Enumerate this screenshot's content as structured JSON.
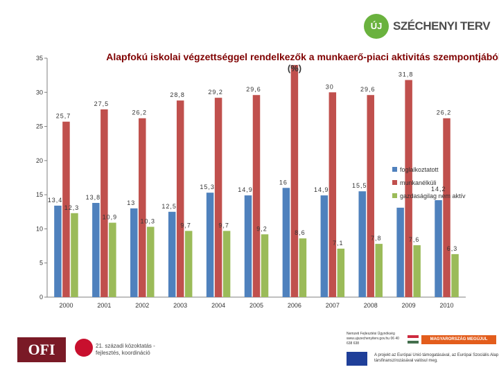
{
  "branding": {
    "icon_text": "ÚJ",
    "name": "SZÉCHENYI TERV",
    "ofi_logo": "OFI",
    "partner_logo": "21. századi közoktatás - fejlesztés, koordináció",
    "contact_text": "Nemzeti Fejlesztési Ügynökség www.ujszechenyiterv.gov.hu 06 40 638 638",
    "mo_badge": "MAGYARORSZÁG MEGÚJUL",
    "eu_text": "A projekt az Európai Unió támogatásával, az Európai Szociális Alap társfinanszírozásával valósul meg."
  },
  "colors": {
    "foglalkoztatott": "#4f81bd",
    "munkanelkuli": "#c0504d",
    "inaktiv": "#9bbb59",
    "axis": "#7f7f7f",
    "brand_green": "#6ab23e"
  },
  "chart_data": {
    "type": "bar",
    "title": "Alapfokú iskolai végzettséggel rendelkezők a munkaerő-piaci aktivitás szempontjából",
    "subtitle": "(%)",
    "categories": [
      "2000",
      "2001",
      "2002",
      "2003",
      "2004",
      "2005",
      "2006",
      "2007",
      "2008",
      "2009",
      "2010"
    ],
    "series": [
      {
        "name": "foglalkoztatott",
        "values": [
          13.4,
          13.8,
          13,
          12.5,
          15.3,
          14.9,
          16,
          14.9,
          15.5,
          13.1,
          14.2
        ],
        "labels": [
          "13,4",
          "13,8",
          "13",
          "12,5",
          "15,3",
          "14,9",
          "16",
          "14,9",
          "15,5",
          "",
          ""
        ]
      },
      {
        "name": "munkanélküli",
        "values": [
          25.7,
          27.5,
          26.2,
          28.8,
          29.2,
          29.6,
          34.0,
          30,
          29.6,
          31.8,
          26.2
        ],
        "labels": [
          "25,7",
          "27,5",
          "26,2",
          "28,8",
          "29,2",
          "29,6",
          "",
          "30",
          "29,6",
          "31,8",
          "26,2"
        ]
      },
      {
        "name": "gazdaságilag nem aktív",
        "values": [
          12.3,
          10.9,
          10.3,
          9.7,
          9.7,
          9.2,
          8.6,
          7.1,
          7.8,
          7.6,
          6.3
        ],
        "labels": [
          "12,3",
          "10,9",
          "10,3",
          "9,7",
          "9,7",
          "9,2",
          "8,6",
          "7,1",
          "7,8",
          "7,6",
          "6,3"
        ]
      }
    ],
    "ylim": [
      0,
      35
    ],
    "yticks": [
      "0",
      "5",
      "10",
      "15",
      "20",
      "25",
      "30",
      "35"
    ],
    "legend_extra_label": "14,2",
    "legend_position": "right",
    "grid": false
  }
}
